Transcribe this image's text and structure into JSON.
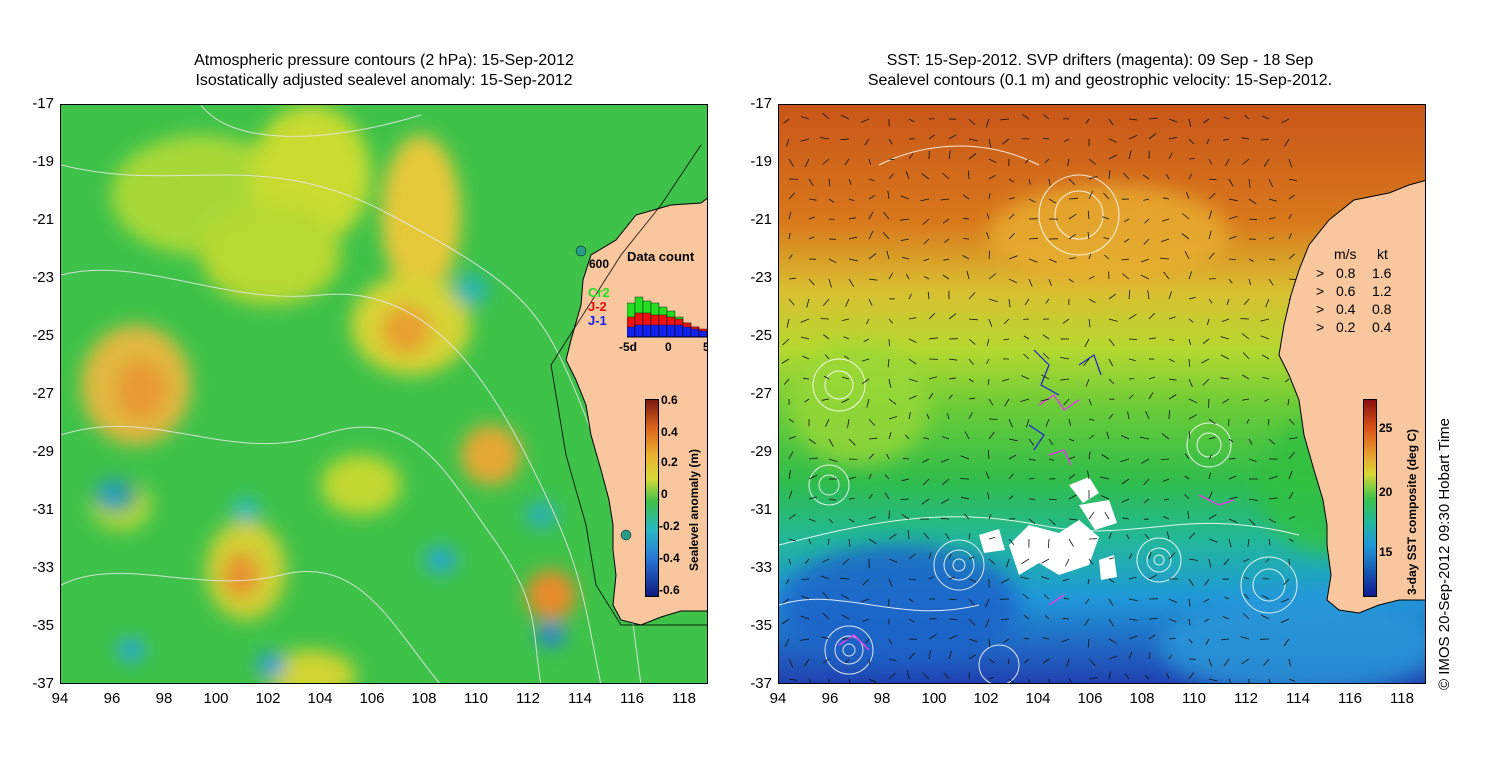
{
  "left_panel": {
    "title_line1": "Atmospheric pressure contours (2 hPa): 15-Sep-2012",
    "title_line2": "Isostatically adjusted sealevel anomaly: 15-Sep-2012",
    "station_label": "600",
    "data_count": {
      "title": "Data count",
      "legend": [
        "Cr2",
        "J-2",
        "J-1"
      ],
      "x_ticks": [
        "-5d",
        "0",
        "5"
      ]
    },
    "colorbar": {
      "label": "Sealevel anomaly (m)",
      "ticks": [
        "0.6",
        "0.4",
        "0.2",
        "0",
        "-0.2",
        "-0.4",
        "-0.6"
      ]
    }
  },
  "right_panel": {
    "title_line1": "SST: 15-Sep-2012. SVP drifters (magenta): 09 Sep - 18 Sep",
    "title_line2": "Sealevel contours (0.1 m) and geostrophic velocity: 15-Sep-2012.",
    "velocity_legend": {
      "header_ms": "m/s",
      "header_kt": "kt",
      "rows": [
        {
          "ms": "0.8",
          "kt": "1.6"
        },
        {
          "ms": "0.6",
          "kt": "1.2"
        },
        {
          "ms": "0.4",
          "kt": "0.8"
        },
        {
          "ms": "0.2",
          "kt": "0.4"
        }
      ]
    },
    "colorbar": {
      "label": "3-day SST composite (deg C)",
      "ticks": [
        "25",
        "20",
        "15"
      ]
    }
  },
  "axes": {
    "y_ticks": [
      "-17",
      "-19",
      "-21",
      "-23",
      "-25",
      "-27",
      "-29",
      "-31",
      "-33",
      "-35",
      "-37"
    ],
    "x_ticks": [
      "94",
      "96",
      "98",
      "100",
      "102",
      "104",
      "106",
      "108",
      "110",
      "112",
      "114",
      "116",
      "118"
    ]
  },
  "credit": "© IMOS 20-Sep-2012 09:30 Hobart Time",
  "colors": {
    "land": "#f8c79e",
    "sla_base": "#3fc24a",
    "sst_warm": "#d8701c",
    "sst_mid": "#d4d43c",
    "sst_cool": "#2ea0d8",
    "drifter": "#e040e0",
    "cr2": "#22dd22",
    "j2": "#ee1111",
    "j1": "#1122ee"
  }
}
